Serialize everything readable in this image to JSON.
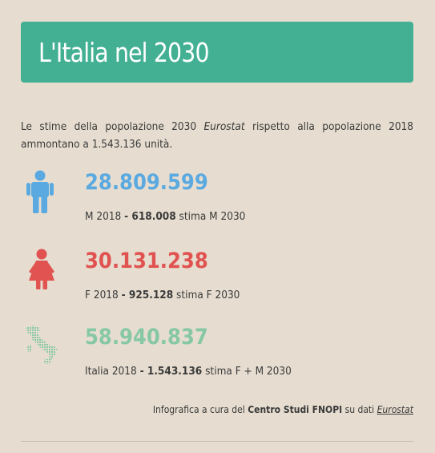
{
  "header": {
    "title": "L'Italia nel 2030"
  },
  "intro": {
    "before": "Le stime della popolazione 2030 ",
    "source": "Eurostat",
    "after": " rispetto alla popolazione 2018 ammontano a 1.543.136 unità."
  },
  "stats": [
    {
      "icon": "male-icon",
      "color": "#5aa9e0",
      "number": "28.809.599",
      "pre": "M 2018 ",
      "bold": "- 618.008",
      "post": " stima M 2030"
    },
    {
      "icon": "female-icon",
      "color": "#e05350",
      "number": "30.131.238",
      "pre": "F 2018 ",
      "bold": "- 925.128",
      "post": " stima F 2030"
    },
    {
      "icon": "italy-map-icon",
      "color": "#86c7a4",
      "number": "58.940.837",
      "pre": "Italia 2018 ",
      "bold": "- 1.543.136",
      "post": " stima F + M 2030"
    }
  ],
  "credit": {
    "before": "Infografica a cura del ",
    "org": "Centro Studi FNOPI",
    "middle": " su dati ",
    "source": "Eurostat"
  }
}
